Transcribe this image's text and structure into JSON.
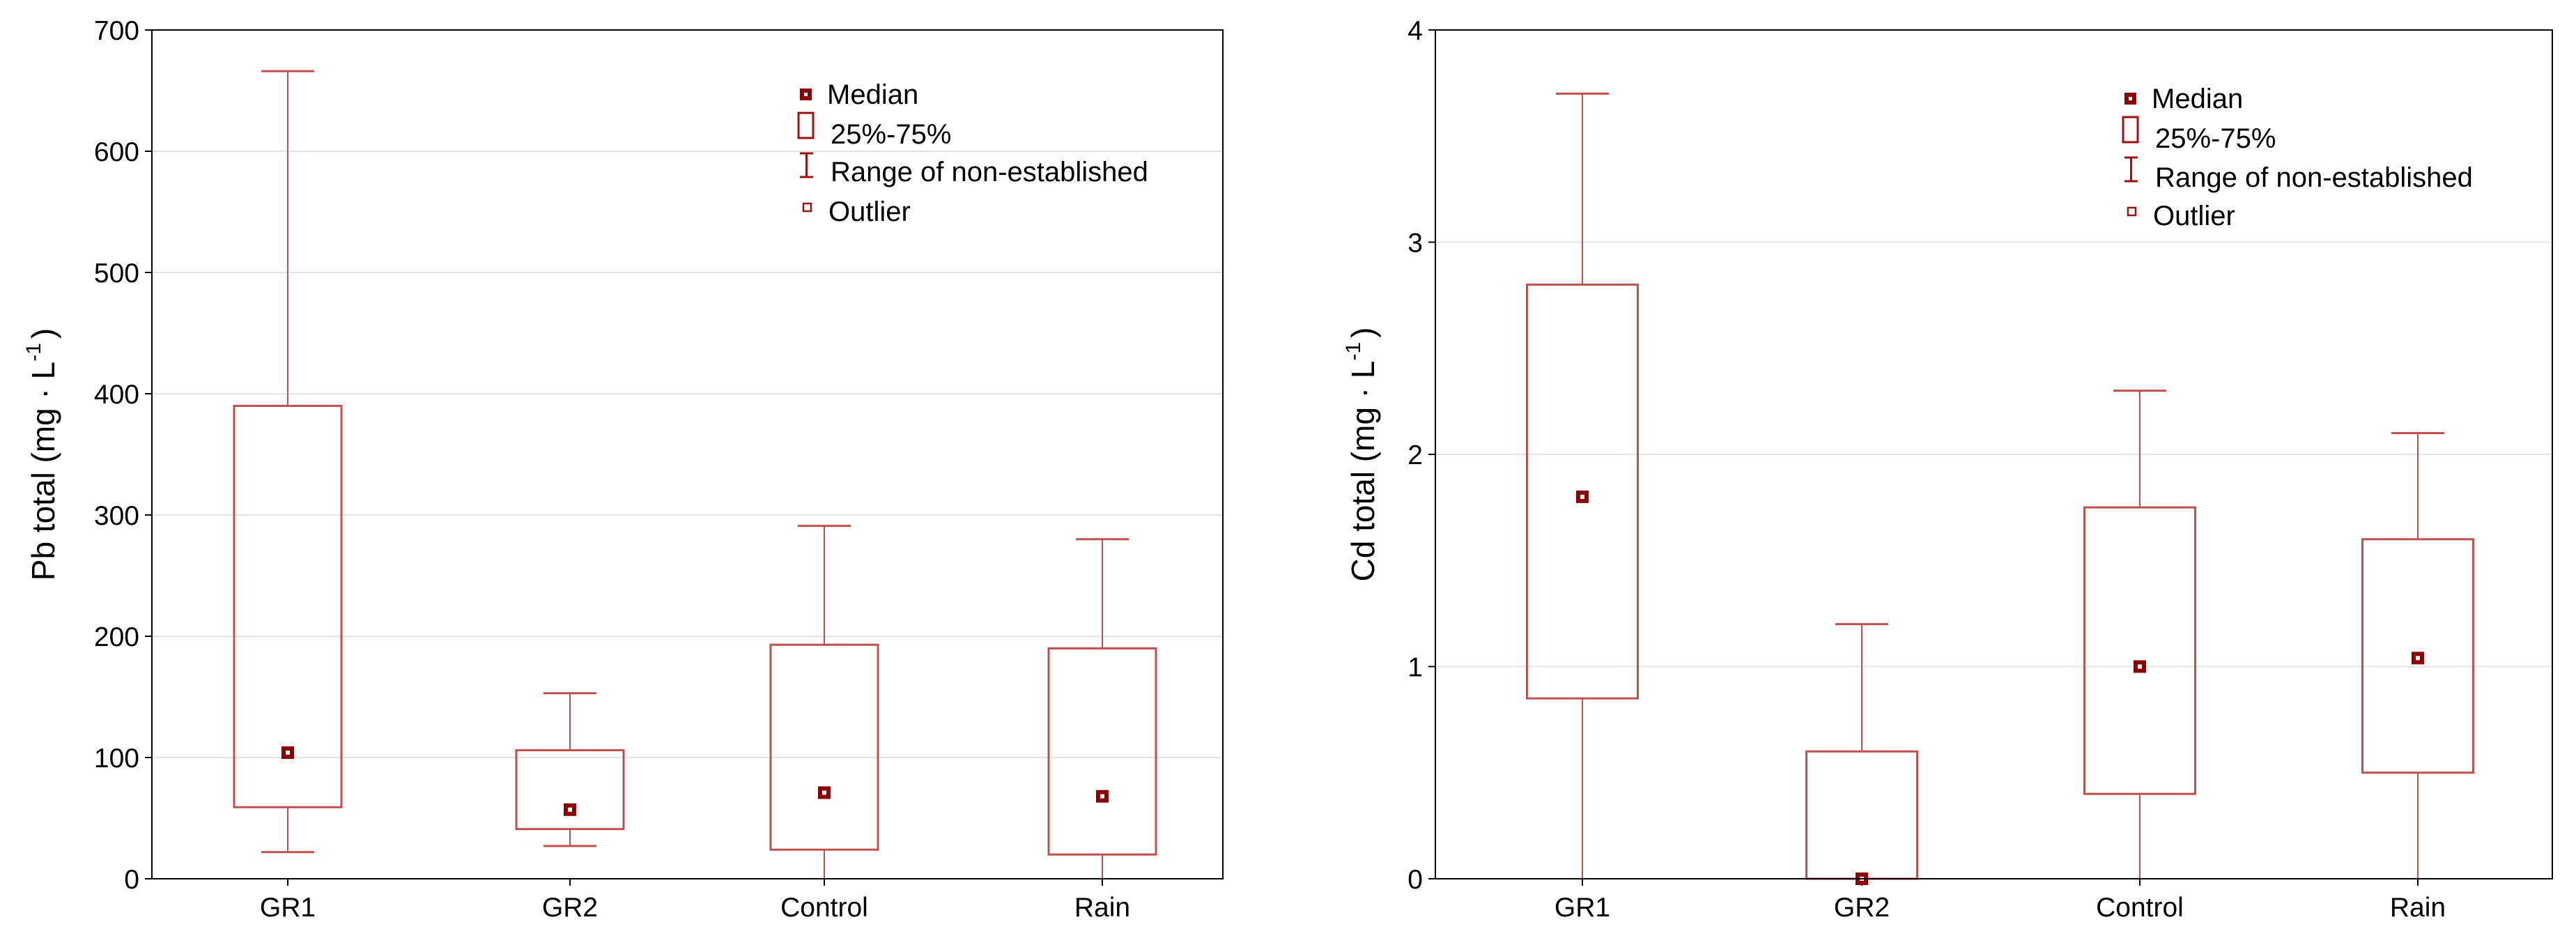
{
  "chart_data": [
    {
      "type": "boxplot",
      "ylabel_main": "Pb total (mg · L",
      "ylabel_sup": "-1",
      "ylabel_close": ")",
      "ylim": [
        0,
        700
      ],
      "yticks": [
        "0",
        "100",
        "200",
        "300",
        "400",
        "500",
        "600",
        "700"
      ],
      "ytick_values": [
        0,
        100,
        200,
        300,
        400,
        500,
        600,
        700
      ],
      "grid": true,
      "legend_position": "top-right",
      "categories": [
        "GR1",
        "GR2",
        "Control",
        "Rain"
      ],
      "boxes": [
        {
          "category": "GR1",
          "median": 104,
          "q1": 59,
          "q3": 390,
          "min": 22,
          "max": 666
        },
        {
          "category": "GR2",
          "median": 57,
          "q1": 41,
          "q3": 106,
          "min": 27,
          "max": 153
        },
        {
          "category": "Control",
          "median": 71,
          "q1": 24,
          "q3": 193,
          "min": 0,
          "max": 291
        },
        {
          "category": "Rain",
          "median": 68,
          "q1": 20,
          "q3": 190,
          "min": 0,
          "max": 280
        }
      ],
      "legend": {
        "median": "Median",
        "box": "25%-75%",
        "range": "Range of non-established",
        "outlier": "Outlier"
      }
    },
    {
      "type": "boxplot",
      "ylabel_main": "Cd total (mg · L",
      "ylabel_sup": "-1",
      "ylabel_close": ")",
      "ylim": [
        0,
        4
      ],
      "yticks": [
        "0",
        "1",
        "2",
        "3",
        "4"
      ],
      "ytick_values": [
        0,
        1,
        2,
        3,
        4
      ],
      "grid": true,
      "legend_position": "top-right",
      "categories": [
        "GR1",
        "GR2",
        "Control",
        "Rain"
      ],
      "boxes": [
        {
          "category": "GR1",
          "median": 1.8,
          "q1": 0.85,
          "q3": 2.8,
          "min": 0,
          "max": 3.7
        },
        {
          "category": "GR2",
          "median": 0,
          "q1": 0,
          "q3": 0.6,
          "min": 0,
          "max": 1.2
        },
        {
          "category": "Control",
          "median": 1.0,
          "q1": 0.4,
          "q3": 1.75,
          "min": 0,
          "max": 2.3
        },
        {
          "category": "Rain",
          "median": 1.04,
          "q1": 0.5,
          "q3": 1.6,
          "min": 0,
          "max": 2.1
        }
      ],
      "legend": {
        "median": "Median",
        "box": "25%-75%",
        "range": "Range of non-established",
        "outlier": "Outlier"
      }
    }
  ],
  "colors": {
    "box": "#c0504d",
    "median_fill": "#8b0000",
    "legend_icon": "#a01010",
    "grid": "#e4e4e4"
  }
}
